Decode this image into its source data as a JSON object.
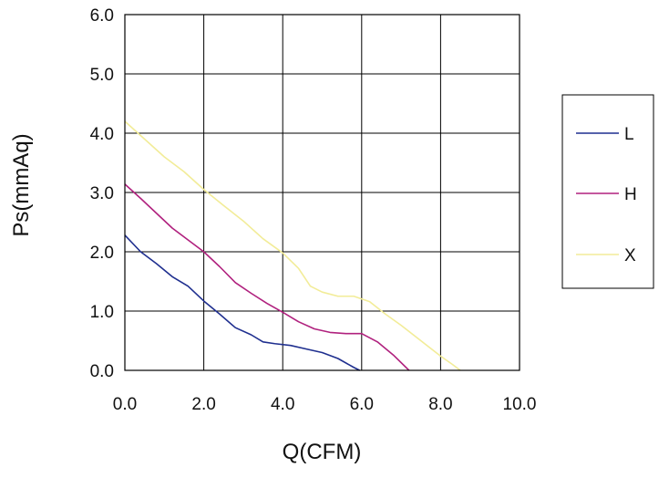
{
  "chart_data": {
    "type": "line",
    "title": "",
    "xlabel": "Q(CFM)",
    "ylabel": "Ps(mmAq)",
    "xlim": [
      0,
      10
    ],
    "ylim": [
      0,
      6
    ],
    "x_ticks": [
      "0.0",
      "2.0",
      "4.0",
      "6.0",
      "8.0",
      "10.0"
    ],
    "y_ticks": [
      "0.0",
      "1.0",
      "2.0",
      "3.0",
      "4.0",
      "5.0",
      "6.0"
    ],
    "grid": true,
    "legend_position": "right",
    "series": [
      {
        "name": "L",
        "color": "#1f2f8f",
        "points": [
          [
            0.0,
            2.28
          ],
          [
            0.4,
            2.0
          ],
          [
            0.8,
            1.8
          ],
          [
            1.2,
            1.58
          ],
          [
            1.6,
            1.42
          ],
          [
            2.0,
            1.17
          ],
          [
            2.4,
            0.95
          ],
          [
            2.8,
            0.72
          ],
          [
            3.2,
            0.6
          ],
          [
            3.5,
            0.48
          ],
          [
            3.8,
            0.45
          ],
          [
            4.2,
            0.42
          ],
          [
            4.6,
            0.36
          ],
          [
            5.0,
            0.3
          ],
          [
            5.4,
            0.2
          ],
          [
            5.8,
            0.05
          ],
          [
            5.95,
            0.0
          ]
        ]
      },
      {
        "name": "H",
        "color": "#b0217e",
        "points": [
          [
            0.0,
            3.14
          ],
          [
            0.4,
            2.9
          ],
          [
            0.8,
            2.65
          ],
          [
            1.2,
            2.4
          ],
          [
            1.6,
            2.2
          ],
          [
            2.0,
            2.0
          ],
          [
            2.4,
            1.75
          ],
          [
            2.8,
            1.48
          ],
          [
            3.2,
            1.3
          ],
          [
            3.6,
            1.13
          ],
          [
            4.0,
            0.98
          ],
          [
            4.4,
            0.82
          ],
          [
            4.8,
            0.7
          ],
          [
            5.2,
            0.64
          ],
          [
            5.6,
            0.62
          ],
          [
            6.0,
            0.62
          ],
          [
            6.4,
            0.48
          ],
          [
            6.8,
            0.26
          ],
          [
            7.2,
            0.0
          ]
        ]
      },
      {
        "name": "X",
        "color": "#f2ec98",
        "points": [
          [
            0.0,
            4.2
          ],
          [
            0.5,
            3.9
          ],
          [
            1.0,
            3.6
          ],
          [
            1.5,
            3.35
          ],
          [
            2.0,
            3.05
          ],
          [
            2.5,
            2.78
          ],
          [
            3.0,
            2.52
          ],
          [
            3.5,
            2.22
          ],
          [
            4.0,
            1.98
          ],
          [
            4.4,
            1.72
          ],
          [
            4.7,
            1.42
          ],
          [
            5.0,
            1.32
          ],
          [
            5.4,
            1.25
          ],
          [
            5.8,
            1.25
          ],
          [
            6.2,
            1.16
          ],
          [
            6.6,
            0.95
          ],
          [
            7.0,
            0.76
          ],
          [
            7.5,
            0.5
          ],
          [
            8.0,
            0.24
          ],
          [
            8.3,
            0.1
          ],
          [
            8.5,
            0.0
          ]
        ]
      }
    ]
  }
}
